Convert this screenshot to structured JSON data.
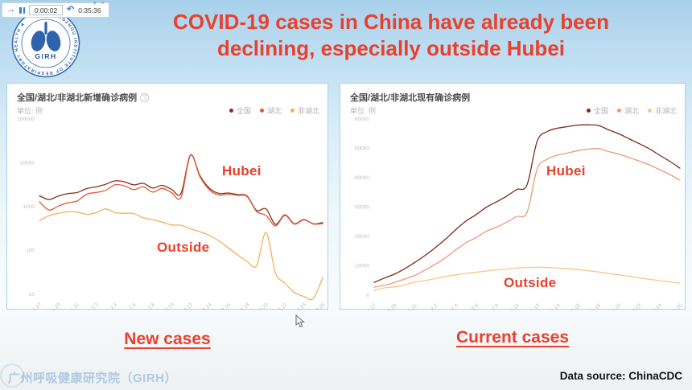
{
  "recorder": {
    "current_time": "0:00:02",
    "total_time": "0:35:36",
    "play_glyph": "→",
    "undo_glyph": "↶",
    "chrome_glyph": "▾ ×"
  },
  "logo": {
    "ring_text": "GUANGZHOU INSTITUTE OF RESPIRATORY HEALTH ★",
    "org_abbr": "GIRH"
  },
  "title": {
    "line1": "COVID-19 cases in China have already been",
    "line2": "declining, especially outside Hubei",
    "color": "#e8412d"
  },
  "captions": {
    "left": "New cases",
    "right": "Current cases"
  },
  "watermark": "广州呼吸健康研究院（GIRH）",
  "data_source": "Data source: ChinaCDC",
  "info_glyph": "?",
  "chart_data": [
    {
      "id": "new-cases",
      "type": "line",
      "title": "全国/湖北/非湖北新增确诊病例",
      "unit_label": "单位: 例",
      "y_scale": "log",
      "ylim": [
        10,
        100000
      ],
      "yticks": [
        100000,
        10000,
        1000,
        100,
        10
      ],
      "x": [
        "1.27",
        "1.28",
        "1.29",
        "1.30",
        "1.31",
        "2.1",
        "2.2",
        "2.3",
        "2.4",
        "2.5",
        "2.6",
        "2.7",
        "2.8",
        "2.9",
        "2.10",
        "2.11",
        "2.12",
        "2.13",
        "2.14",
        "2.15",
        "2.16",
        "2.17",
        "2.18",
        "2.19",
        "2.20",
        "2.21",
        "2.22",
        "2.23",
        "2.24",
        "2.25",
        "2.26"
      ],
      "x_tick_every": 2,
      "legend_position": "top-right",
      "grid": false,
      "series": [
        {
          "name": "全国",
          "color": "#8c2e1d",
          "values": [
            1771,
            1459,
            1737,
            1982,
            2102,
            2590,
            2829,
            3235,
            3887,
            3694,
            3143,
            3399,
            2656,
            3062,
            2478,
            2015,
            15152,
            5090,
            2641,
            2009,
            2048,
            1886,
            1749,
            820,
            889,
            397,
            648,
            409,
            508,
            406,
            433
          ]
        },
        {
          "name": "湖北",
          "color": "#e05a3a",
          "values": [
            1291,
            840,
            1032,
            1220,
            1347,
            1921,
            2103,
            2345,
            3156,
            2987,
            2447,
            2841,
            2147,
            2618,
            2097,
            1638,
            14840,
            4823,
            2420,
            1843,
            1933,
            1807,
            1693,
            775,
            631,
            366,
            630,
            398,
            499,
            401,
            409
          ]
        },
        {
          "name": "非湖北",
          "color": "#f3b05a",
          "values": [
            480,
            619,
            705,
            762,
            755,
            669,
            726,
            890,
            731,
            707,
            696,
            558,
            509,
            444,
            381,
            377,
            312,
            267,
            221,
            166,
            115,
            79,
            56,
            45,
            258,
            31,
            18,
            11,
            9,
            8,
            24
          ]
        }
      ],
      "annotations": [
        {
          "text": "Hubei"
        },
        {
          "text": "Outside"
        }
      ]
    },
    {
      "id": "current-cases",
      "type": "line",
      "title": "全国/湖北/非湖北现有确诊病例",
      "unit_label": "单位: 例",
      "y_scale": "linear",
      "ylim": [
        0,
        60000
      ],
      "yticks": [
        60000,
        50000,
        40000,
        30000,
        20000,
        10000,
        0
      ],
      "x": [
        "1.27",
        "1.28",
        "1.29",
        "1.30",
        "1.31",
        "2.1",
        "2.2",
        "2.3",
        "2.4",
        "2.5",
        "2.6",
        "2.7",
        "2.8",
        "2.9",
        "2.10",
        "2.11",
        "2.12",
        "2.13",
        "2.14",
        "2.15",
        "2.16",
        "2.17",
        "2.18",
        "2.19",
        "2.20",
        "2.21",
        "2.22",
        "2.23",
        "2.24",
        "2.25",
        "2.26"
      ],
      "x_tick_every": 2,
      "legend_position": "top-right",
      "grid": false,
      "series": [
        {
          "name": "全国",
          "color": "#7d2a1a",
          "values": [
            4292,
            5806,
            7153,
            8996,
            11177,
            13522,
            16155,
            19065,
            22283,
            25202,
            27422,
            29931,
            31760,
            33738,
            35982,
            37626,
            52526,
            55748,
            56873,
            57416,
            57934,
            58016,
            57805,
            56303,
            54965,
            53284,
            51606,
            49824,
            47672,
            45604,
            43258
          ]
        },
        {
          "name": "湖北",
          "color": "#ef9878",
          "values": [
            2714,
            3349,
            4334,
            5486,
            6738,
            8565,
            10532,
            12722,
            15383,
            17802,
            19622,
            21731,
            23160,
            24838,
            26782,
            28226,
            43026,
            46348,
            47673,
            48416,
            49234,
            49716,
            49905,
            48903,
            48065,
            46884,
            45706,
            44424,
            42772,
            41104,
            39158
          ]
        },
        {
          "name": "非湖北",
          "color": "#f6c784",
          "values": [
            1578,
            2457,
            2819,
            3510,
            4439,
            4957,
            5623,
            6343,
            6900,
            7400,
            7800,
            8200,
            8600,
            8900,
            9200,
            9400,
            9500,
            9400,
            9200,
            9000,
            8700,
            8300,
            7900,
            7400,
            6900,
            6400,
            5900,
            5400,
            4900,
            4500,
            4100
          ]
        }
      ],
      "annotations": [
        {
          "text": "Hubei"
        },
        {
          "text": "Outside"
        }
      ]
    }
  ]
}
